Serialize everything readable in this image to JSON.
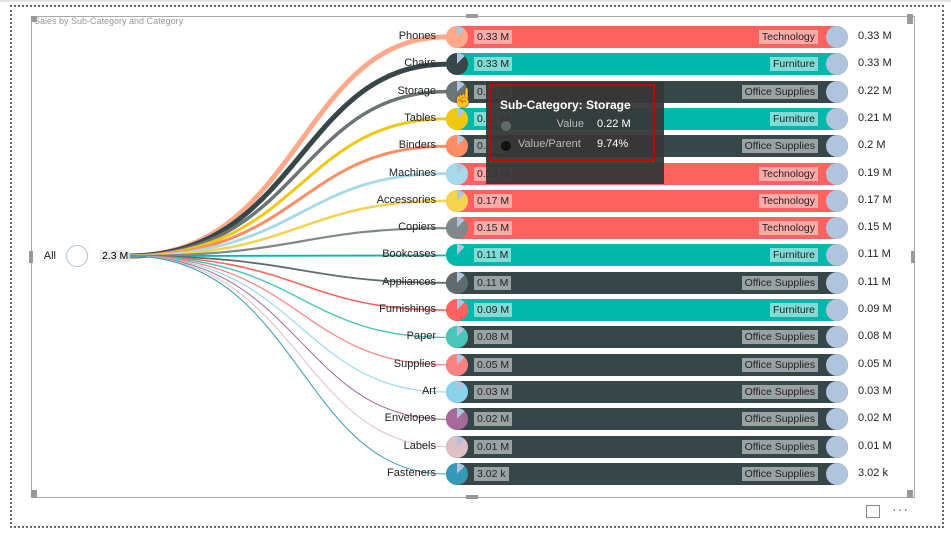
{
  "title": "Sales by Sub-Category and Category",
  "root": {
    "label": "All",
    "value": "2.3 M"
  },
  "colors": {
    "Technology": "#FD625E",
    "Furniture": "#01B8AA",
    "Office Supplies": "#374649"
  },
  "tint": {
    "Technology": "#FDABA9",
    "Furniture": "#80DCD4",
    "Office Supplies": "#9AA3A4"
  },
  "rows": [
    {
      "name": "Phones",
      "value": "0.33 M",
      "category": "Technology",
      "total": "0.33 M",
      "color": "#FFA98A",
      "w": 5
    },
    {
      "name": "Chairs",
      "value": "0.33 M",
      "category": "Furniture",
      "total": "0.33 M",
      "color": "#374649",
      "w": 5
    },
    {
      "name": "Storage",
      "value": "0.22 M",
      "category": "Office Supplies",
      "total": "0.22 M",
      "color": "#6B7576",
      "w": 3.5
    },
    {
      "name": "Tables",
      "value": "0.21 M",
      "category": "Furniture",
      "total": "0.21 M",
      "color": "#F2C80F",
      "w": 3
    },
    {
      "name": "Binders",
      "value": "0.2 M",
      "category": "Office Supplies",
      "total": "0.2 M",
      "color": "#FD8D62",
      "w": 3
    },
    {
      "name": "Machines",
      "value": "0.19 M",
      "category": "Technology",
      "total": "0.19 M",
      "color": "#A6D9EC",
      "w": 2.8
    },
    {
      "name": "Accessories",
      "value": "0.17 M",
      "category": "Technology",
      "total": "0.17 M",
      "color": "#F5D34F",
      "w": 2.5
    },
    {
      "name": "Copiers",
      "value": "0.15 M",
      "category": "Technology",
      "total": "0.15 M",
      "color": "#7F898A",
      "w": 2.2
    },
    {
      "name": "Bookcases",
      "value": "0.11 M",
      "category": "Furniture",
      "total": "0.11 M",
      "color": "#01B8AA",
      "w": 1.8
    },
    {
      "name": "Appliances",
      "value": "0.11 M",
      "category": "Office Supplies",
      "total": "0.11 M",
      "color": "#5F6B6D",
      "w": 1.8
    },
    {
      "name": "Furnishings",
      "value": "0.09 M",
      "category": "Furniture",
      "total": "0.09 M",
      "color": "#FD625E",
      "w": 1.6
    },
    {
      "name": "Paper",
      "value": "0.08 M",
      "category": "Office Supplies",
      "total": "0.08 M",
      "color": "#4AC5BB",
      "w": 1.4
    },
    {
      "name": "Supplies",
      "value": "0.05 M",
      "category": "Office Supplies",
      "total": "0.05 M",
      "color": "#FB8281",
      "w": 1.2
    },
    {
      "name": "Art",
      "value": "0.03 M",
      "category": "Office Supplies",
      "total": "0.03 M",
      "color": "#8AD4EB",
      "w": 1
    },
    {
      "name": "Envelopes",
      "value": "0.02 M",
      "category": "Office Supplies",
      "total": "0.02 M",
      "color": "#A66999",
      "w": 1
    },
    {
      "name": "Labels",
      "value": "0.01 M",
      "category": "Office Supplies",
      "total": "0.01 M",
      "color": "#DEBFC4",
      "w": 1
    },
    {
      "name": "Fasteners",
      "value": "3.02 k",
      "category": "Office Supplies",
      "total": "3.02 k",
      "color": "#3599B8",
      "w": 1
    }
  ],
  "tooltip": {
    "title": "Sub-Category: Storage",
    "value_label": "Value",
    "value": "0.22 M",
    "ratio_label": "Value/Parent",
    "ratio": "9.74%"
  }
}
